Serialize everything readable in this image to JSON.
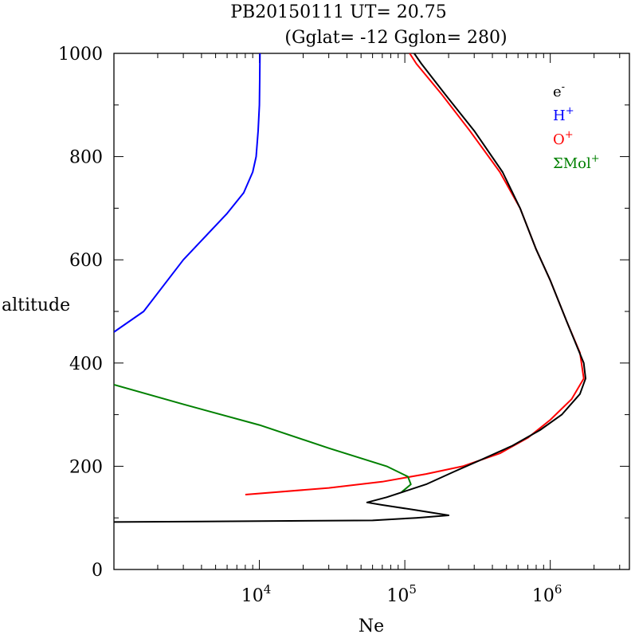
{
  "chart_data": {
    "type": "line",
    "title": "PB20150111   UT=  20.75",
    "subtitle": "(Gglat= -12   Gglon=  280)",
    "xlabel": "Ne",
    "ylabel": "altitude",
    "x_scale": "log",
    "xlim": [
      1000,
      3500000
    ],
    "ylim": [
      0,
      1000
    ],
    "x_ticks": [
      {
        "value": 10000,
        "base": "10",
        "exp": "4"
      },
      {
        "value": 100000,
        "base": "10",
        "exp": "5"
      },
      {
        "value": 1000000,
        "base": "10",
        "exp": "6"
      }
    ],
    "y_ticks": [
      "0",
      "200",
      "400",
      "600",
      "800",
      "1000"
    ],
    "grid": false,
    "legend": {
      "position": "top-right",
      "entries": [
        {
          "base": "e",
          "sup": "-",
          "color": "#000000"
        },
        {
          "base": "H",
          "sup": "+",
          "color": "#0000ff"
        },
        {
          "base": "O",
          "sup": "+",
          "color": "#ff0000"
        },
        {
          "base": "ΣMol",
          "sup": "+",
          "color": "#008000"
        }
      ]
    },
    "series": [
      {
        "color": "#0000ff",
        "points": [
          [
            1000,
            460
          ],
          [
            1600,
            500
          ],
          [
            3000,
            600
          ],
          [
            6000,
            690
          ],
          [
            7800,
            730
          ],
          [
            9000,
            770
          ],
          [
            9500,
            800
          ],
          [
            9800,
            850
          ],
          [
            10000,
            900
          ],
          [
            10050,
            950
          ],
          [
            10100,
            1000
          ]
        ]
      },
      {
        "color": "#ff0000",
        "points": [
          [
            8000,
            145
          ],
          [
            30000,
            158
          ],
          [
            70000,
            170
          ],
          [
            140000,
            185
          ],
          [
            250000,
            200
          ],
          [
            450000,
            225
          ],
          [
            700000,
            255
          ],
          [
            1000000,
            290
          ],
          [
            1400000,
            330
          ],
          [
            1700000,
            370
          ],
          [
            1600000,
            420
          ],
          [
            1300000,
            480
          ],
          [
            1000000,
            560
          ],
          [
            800000,
            620
          ],
          [
            620000,
            700
          ],
          [
            450000,
            770
          ],
          [
            280000,
            850
          ],
          [
            180000,
            920
          ],
          [
            120000,
            980
          ],
          [
            108000,
            1000
          ]
        ]
      },
      {
        "color": "#008000",
        "points": [
          [
            1000,
            358
          ],
          [
            3000,
            320
          ],
          [
            10000,
            280
          ],
          [
            30000,
            235
          ],
          [
            75000,
            200
          ],
          [
            105000,
            180
          ],
          [
            110000,
            165
          ],
          [
            95000,
            150
          ]
        ]
      },
      {
        "color": "#000000",
        "points": [
          [
            1000,
            92
          ],
          [
            60000,
            95
          ],
          [
            120000,
            100
          ],
          [
            200000,
            105
          ],
          [
            120000,
            115
          ],
          [
            70000,
            125
          ],
          [
            55000,
            130
          ],
          [
            75000,
            140
          ],
          [
            140000,
            165
          ],
          [
            220000,
            190
          ],
          [
            350000,
            215
          ],
          [
            550000,
            240
          ],
          [
            850000,
            270
          ],
          [
            1200000,
            300
          ],
          [
            1600000,
            340
          ],
          [
            1750000,
            370
          ],
          [
            1700000,
            400
          ],
          [
            1300000,
            480
          ],
          [
            1000000,
            560
          ],
          [
            800000,
            620
          ],
          [
            620000,
            700
          ],
          [
            470000,
            770
          ],
          [
            300000,
            850
          ],
          [
            190000,
            920
          ],
          [
            130000,
            980
          ],
          [
            116000,
            1000
          ]
        ]
      }
    ]
  }
}
